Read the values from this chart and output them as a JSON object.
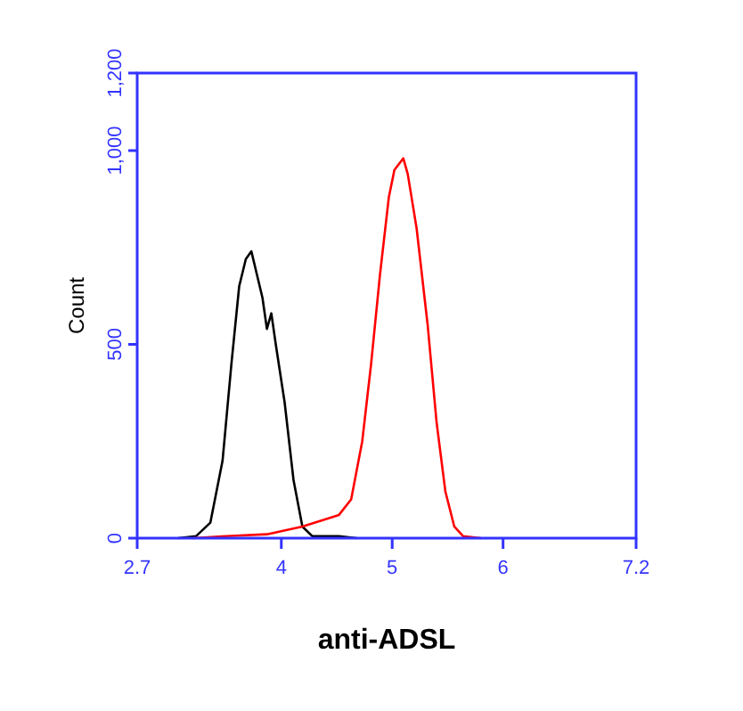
{
  "chart_data": {
    "type": "line",
    "xlabel": "anti-ADSL",
    "ylabel": "Count",
    "xlim": [
      2.7,
      7.2
    ],
    "xticks": [
      2.7,
      4,
      5,
      6,
      7.2
    ],
    "ylim": [
      0,
      1200
    ],
    "yticks": [
      0,
      500,
      {
        "value": 1000,
        "label": "1,000"
      },
      {
        "value": 1200,
        "label": "1,200"
      }
    ],
    "grid": false,
    "line_style": "solid",
    "series": [
      {
        "color": "#000000",
        "x": [
          3.07,
          3.23,
          3.36,
          3.47,
          3.55,
          3.62,
          3.68,
          3.73,
          3.78,
          3.83,
          3.87,
          3.91,
          3.95,
          4.03,
          4.11,
          4.19,
          4.28,
          4.52,
          4.68
        ],
        "values": [
          0,
          5,
          40,
          200,
          450,
          650,
          720,
          740,
          680,
          620,
          540,
          580,
          500,
          350,
          150,
          30,
          5,
          5,
          0
        ]
      },
      {
        "color": "#ff0000",
        "x": [
          3.2,
          3.5,
          3.87,
          4.19,
          4.52,
          4.63,
          4.73,
          4.81,
          4.89,
          4.97,
          5.02,
          5.1,
          5.14,
          5.22,
          5.32,
          5.4,
          5.48,
          5.56,
          5.64,
          5.8
        ],
        "values": [
          0,
          5,
          10,
          30,
          60,
          100,
          250,
          450,
          680,
          880,
          950,
          980,
          940,
          800,
          550,
          300,
          120,
          30,
          5,
          0
        ]
      }
    ]
  }
}
